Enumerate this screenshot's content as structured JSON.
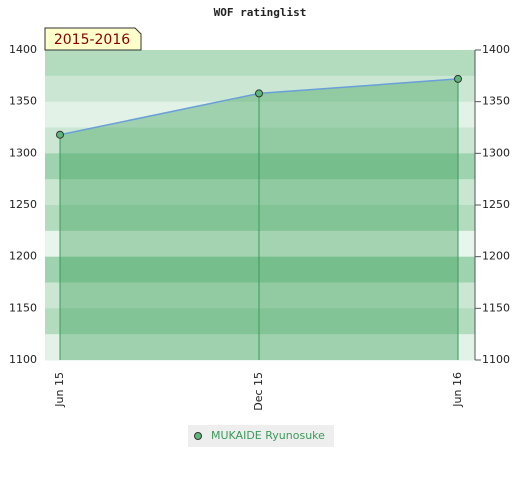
{
  "chart_data": {
    "type": "area",
    "title": "WOF ratinglist",
    "annotation": "2015-2016",
    "categories": [
      "Jun 15",
      "Dec 15",
      "Jun 16"
    ],
    "series": [
      {
        "name": "MUKAIDE Ryunosuke",
        "color": "#5cb87a",
        "values": [
          1318,
          1358,
          1372
        ]
      }
    ],
    "ylim": [
      1100,
      1400
    ],
    "yticks": [
      1100,
      1150,
      1200,
      1250,
      1300,
      1350,
      1400
    ],
    "y2lim": [
      1100,
      1400
    ],
    "y2ticks": [
      1100,
      1150,
      1200,
      1250,
      1300,
      1350,
      1400
    ],
    "legend": "bottom"
  }
}
